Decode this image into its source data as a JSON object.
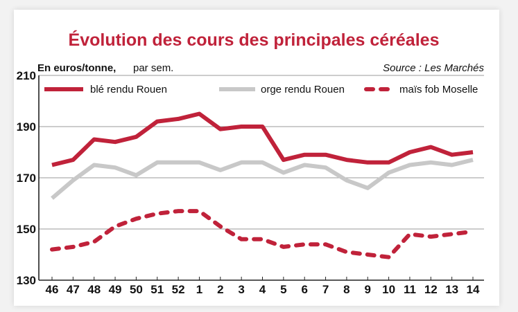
{
  "chart_data": {
    "type": "line",
    "title": "Évolution des cours des principales céréales",
    "unit_label": "En euros/tonne,",
    "unit_suffix": "par sem.",
    "source": "Source : Les Marchés",
    "categories": [
      "46",
      "47",
      "48",
      "49",
      "50",
      "51",
      "52",
      "1",
      "2",
      "3",
      "4",
      "5",
      "6",
      "7",
      "8",
      "9",
      "10",
      "11",
      "12",
      "13",
      "14"
    ],
    "ylim": [
      130,
      210
    ],
    "yticks": [
      130,
      150,
      170,
      190,
      210
    ],
    "grid": true,
    "legend_position": "top",
    "series": [
      {
        "name": "blé rendu Rouen",
        "color": "#c0223a",
        "style": "solid",
        "values": [
          175,
          177,
          185,
          184,
          186,
          192,
          193,
          195,
          189,
          190,
          190,
          177,
          179,
          179,
          177,
          176,
          176,
          180,
          182,
          179,
          180
        ]
      },
      {
        "name": "orge rendu Rouen",
        "color": "#c8c8c8",
        "style": "solid",
        "values": [
          162,
          169,
          175,
          174,
          171,
          176,
          176,
          176,
          173,
          176,
          176,
          172,
          175,
          174,
          169,
          166,
          172,
          175,
          176,
          175,
          177
        ]
      },
      {
        "name": "maïs fob Moselle",
        "color": "#c0223a",
        "style": "dashed",
        "values": [
          142,
          143,
          145,
          151,
          154,
          156,
          157,
          157,
          151,
          146,
          146,
          143,
          144,
          144,
          141,
          140,
          139,
          148,
          147,
          148,
          149
        ]
      }
    ]
  }
}
